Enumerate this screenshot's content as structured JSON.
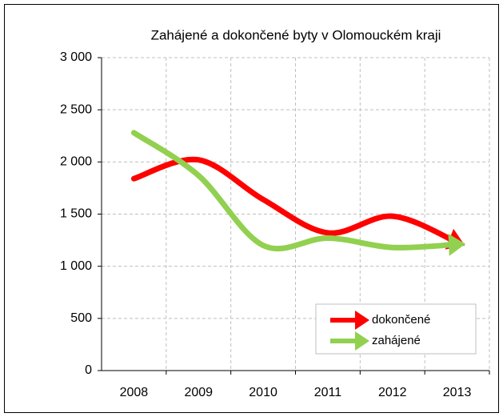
{
  "chart_data": {
    "type": "line",
    "title": "Zahájené a dokončené byty v Olomouckém kraji",
    "categories": [
      "2008",
      "2009",
      "2010",
      "2011",
      "2012",
      "2013"
    ],
    "series": [
      {
        "name": "dokončené",
        "color": "#ff0000",
        "values": [
          1840,
          2020,
          1640,
          1320,
          1480,
          1230
        ]
      },
      {
        "name": "zahájené",
        "color": "#92d050",
        "values": [
          2280,
          1870,
          1200,
          1270,
          1180,
          1210
        ]
      }
    ],
    "ylim": [
      0,
      3000
    ],
    "yticks": [
      0,
      500,
      {
        "value": 1000,
        "label": "1 000"
      },
      {
        "value": 1500,
        "label": "1 500"
      },
      {
        "value": 2000,
        "label": "2 000"
      },
      {
        "value": 2500,
        "label": "2 500"
      },
      {
        "value": 3000,
        "label": "3 000"
      }
    ],
    "grid": true,
    "legend": "lower right"
  }
}
